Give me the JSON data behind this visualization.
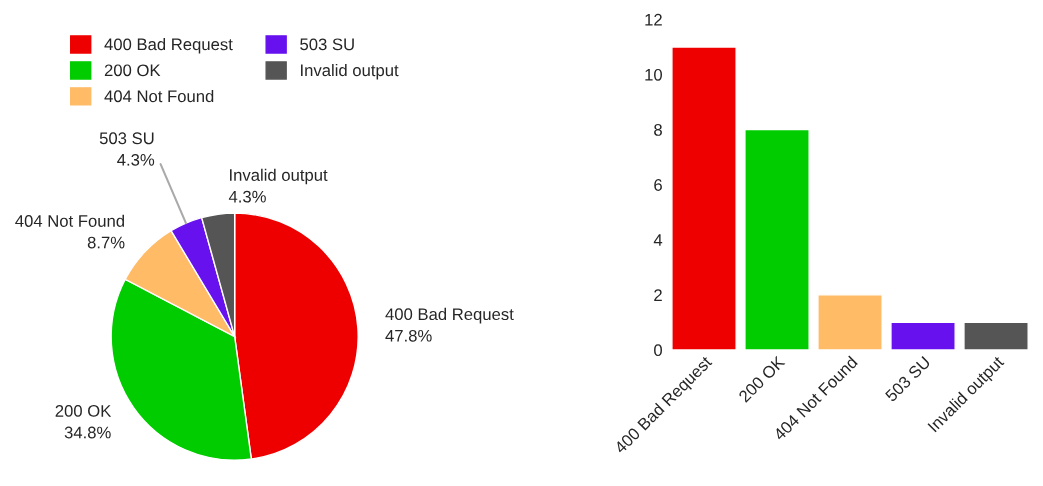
{
  "chart_data": [
    {
      "type": "pie",
      "categories": [
        "400 Bad Request",
        "200 OK",
        "404 Not Found",
        "503 SU",
        "Invalid output"
      ],
      "values": [
        47.8,
        34.8,
        8.7,
        4.3,
        4.3
      ],
      "value_labels": [
        "47.8%",
        "34.8%",
        "8.7%",
        "4.3%",
        "4.3%"
      ],
      "colors": [
        "#ee0000",
        "#00cc00",
        "#ffbb66",
        "#6611ee",
        "#555555"
      ],
      "legend": "top"
    },
    {
      "type": "bar",
      "categories": [
        "400 Bad Request",
        "200 OK",
        "404 Not Found",
        "503 SU",
        "Invalid output"
      ],
      "values": [
        11,
        8,
        2,
        1,
        1
      ],
      "colors": [
        "#ee0000",
        "#00cc00",
        "#ffbb66",
        "#6611ee",
        "#555555"
      ],
      "ylim": [
        0,
        12
      ],
      "yticks": [
        0,
        2,
        4,
        6,
        8,
        10,
        12
      ],
      "grid": false
    }
  ]
}
